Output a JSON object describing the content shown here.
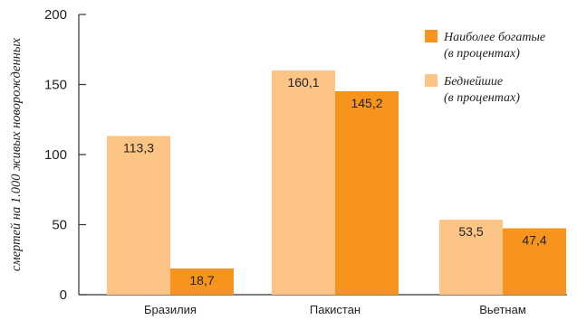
{
  "chart_data": {
    "type": "bar",
    "title": "",
    "xlabel": "",
    "ylabel": "смертей на 1.000 живых новорожденных",
    "ylim": [
      0,
      200
    ],
    "yticks": [
      0,
      50,
      100,
      150,
      200
    ],
    "categories": [
      "Бразилия",
      "Пакистан",
      "Вьетнам"
    ],
    "series": [
      {
        "name": "Беднейшие",
        "name_note": "(в процентах)",
        "color": "#fcc586",
        "values": [
          113.3,
          160.1,
          53.5
        ],
        "value_labels": [
          "113,3",
          "160,1",
          "53,5"
        ]
      },
      {
        "name": "Наиболее богатые",
        "name_note": "(в процентах)",
        "color": "#f7941d",
        "values": [
          18.7,
          145.2,
          47.4
        ],
        "value_labels": [
          "18,7",
          "145,2",
          "47,4"
        ]
      }
    ],
    "legend_position": "top-right",
    "grid": false
  }
}
